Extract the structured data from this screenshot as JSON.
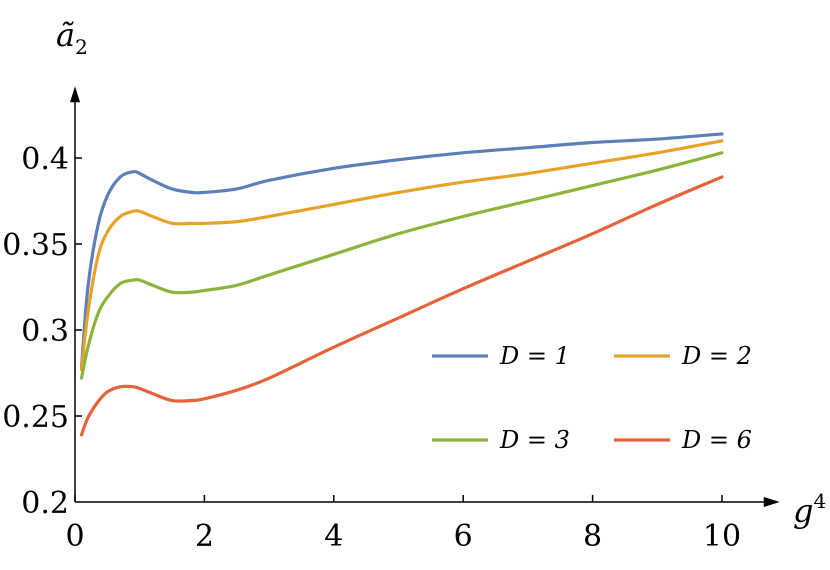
{
  "chart_data": {
    "type": "line",
    "title": "",
    "xlabel": {
      "base": "g",
      "sup": "4"
    },
    "ylabel": {
      "base": "ã",
      "sub": "2"
    },
    "xlim": [
      0,
      10.8
    ],
    "ylim": [
      0.2,
      0.44
    ],
    "xticks": [
      0,
      2,
      4,
      6,
      8,
      10
    ],
    "yticks": [
      0.2,
      0.25,
      0.3,
      0.35,
      0.4
    ],
    "xtick_labels": [
      "0",
      "2",
      "4",
      "6",
      "8",
      "10"
    ],
    "ytick_labels": [
      "0.2",
      "0.25",
      "0.3",
      "0.35",
      "0.4"
    ],
    "grid": false,
    "legend_position": "right-middle",
    "series": [
      {
        "name": "D = 1",
        "color": "#5b7fb8",
        "x": [
          0.1,
          0.2,
          0.35,
          0.5,
          0.7,
          0.9,
          1.0,
          1.2,
          1.5,
          1.8,
          2.0,
          2.5,
          3.0,
          4.0,
          5.0,
          6.0,
          7.0,
          8.0,
          9.0,
          10.0
        ],
        "y": [
          0.278,
          0.325,
          0.36,
          0.378,
          0.389,
          0.392,
          0.391,
          0.387,
          0.382,
          0.38,
          0.38,
          0.382,
          0.387,
          0.394,
          0.399,
          0.403,
          0.406,
          0.409,
          0.411,
          0.414
        ]
      },
      {
        "name": "D = 2",
        "color": "#e6a22a",
        "x": [
          0.1,
          0.2,
          0.35,
          0.5,
          0.7,
          0.9,
          1.0,
          1.2,
          1.5,
          1.8,
          2.0,
          2.5,
          3.0,
          4.0,
          5.0,
          6.0,
          7.0,
          8.0,
          9.0,
          10.0
        ],
        "y": [
          0.277,
          0.31,
          0.342,
          0.357,
          0.366,
          0.369,
          0.369,
          0.366,
          0.362,
          0.362,
          0.362,
          0.363,
          0.366,
          0.373,
          0.38,
          0.386,
          0.391,
          0.397,
          0.403,
          0.41
        ]
      },
      {
        "name": "D = 3",
        "color": "#8cb43a",
        "x": [
          0.1,
          0.2,
          0.35,
          0.5,
          0.7,
          0.9,
          1.0,
          1.2,
          1.5,
          1.8,
          2.0,
          2.5,
          3.0,
          4.0,
          5.0,
          6.0,
          7.0,
          8.0,
          9.0,
          10.0
        ],
        "y": [
          0.272,
          0.29,
          0.309,
          0.319,
          0.327,
          0.329,
          0.329,
          0.326,
          0.322,
          0.322,
          0.323,
          0.326,
          0.332,
          0.344,
          0.356,
          0.366,
          0.375,
          0.384,
          0.393,
          0.403
        ]
      },
      {
        "name": "D = 6",
        "color": "#e5623a",
        "x": [
          0.1,
          0.2,
          0.35,
          0.5,
          0.7,
          0.9,
          1.0,
          1.2,
          1.5,
          1.8,
          2.0,
          2.5,
          3.0,
          4.0,
          5.0,
          6.0,
          7.0,
          8.0,
          9.0,
          10.0
        ],
        "y": [
          0.239,
          0.249,
          0.258,
          0.264,
          0.267,
          0.267,
          0.266,
          0.263,
          0.259,
          0.259,
          0.26,
          0.265,
          0.272,
          0.29,
          0.307,
          0.324,
          0.34,
          0.356,
          0.373,
          0.389
        ]
      }
    ]
  }
}
